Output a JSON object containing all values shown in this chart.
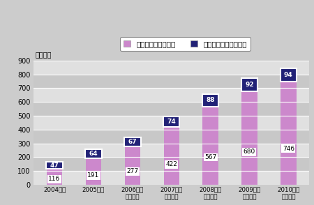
{
  "categories": [
    "2004年度",
    "2005年度",
    "2006年度\n（見込）",
    "2007年度\n（予測）",
    "2008年度\n（予測）",
    "2009年度\n（予測）",
    "2010年度\n（予測）"
  ],
  "software_values": [
    116,
    191,
    277,
    422,
    567,
    680,
    746
  ],
  "publishing_values": [
    47,
    64,
    67,
    74,
    88,
    92,
    94
  ],
  "bar_color_software": "#cc88cc",
  "bar_color_publishing": "#222277",
  "title_y_label": "（億円）",
  "ylim": [
    0,
    900
  ],
  "yticks": [
    0,
    100,
    200,
    300,
    400,
    500,
    600,
    700,
    800,
    900
  ],
  "legend_software": "ソフトウェア売上高",
  "legend_publishing": "パブリッシング売上高",
  "background_color": "#cccccc",
  "plot_bg_color_light": "#e0e0e0",
  "plot_bg_color_dark": "#c8c8c8",
  "grid_color": "#ffffff",
  "bar_width": 0.4
}
